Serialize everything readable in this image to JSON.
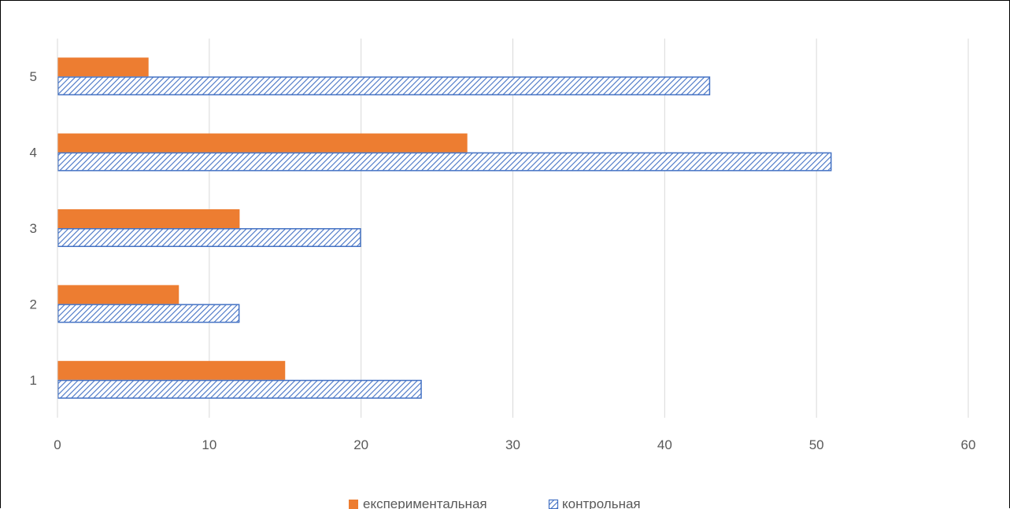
{
  "chart_data": {
    "type": "bar",
    "orientation": "horizontal",
    "title": "",
    "xlabel": "",
    "ylabel": "",
    "categories": [
      "1",
      "2",
      "3",
      "4",
      "5"
    ],
    "series": [
      {
        "name": "експериментальная",
        "values": [
          15,
          8,
          12,
          27,
          6
        ],
        "color": "#ED7D31",
        "fill": "solid"
      },
      {
        "name": "контрольная",
        "values": [
          24,
          12,
          20,
          51,
          43
        ],
        "color": "#4472C4",
        "fill": "diagonal-hatch"
      }
    ],
    "xlim": [
      0,
      60
    ],
    "x_ticks": [
      0,
      10,
      20,
      30,
      40,
      50,
      60
    ],
    "grid": "vertical",
    "legend_position": "bottom"
  }
}
